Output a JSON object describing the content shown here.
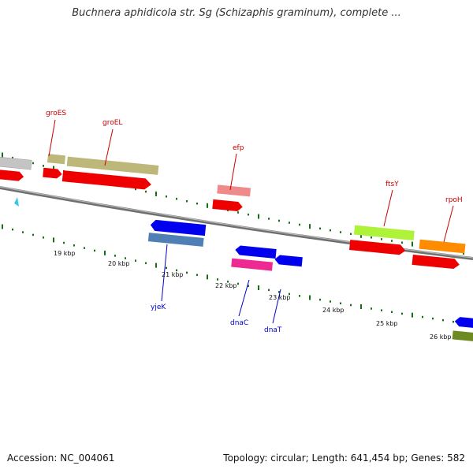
{
  "title": "Buchnera aphidicola str. Sg (Schizaphis graminum), complete ...",
  "footer": {
    "accession": "Accession: NC_004061",
    "stats": "Topology: circular; Length: 641,454 bp; Genes: 582"
  },
  "colors": {
    "backbone": "#7a7a7a",
    "tick": "#137013",
    "forward_label": "#cc0000",
    "reverse_label": "#0000cc"
  },
  "kbp_labels": [
    "19 kbp",
    "20 kbp",
    "21 kbp",
    "22 kbp",
    "23 kbp",
    "24 kbp",
    "25 kbp",
    "26 kbp"
  ],
  "gene_labels": {
    "groES": "groES",
    "groEL": "groEL",
    "efp": "efp",
    "ftsY": "ftsY",
    "rpoH": "rpoH",
    "yjeK": "yjeK",
    "dnaC": "dnaC",
    "dnaT": "dnaT"
  }
}
